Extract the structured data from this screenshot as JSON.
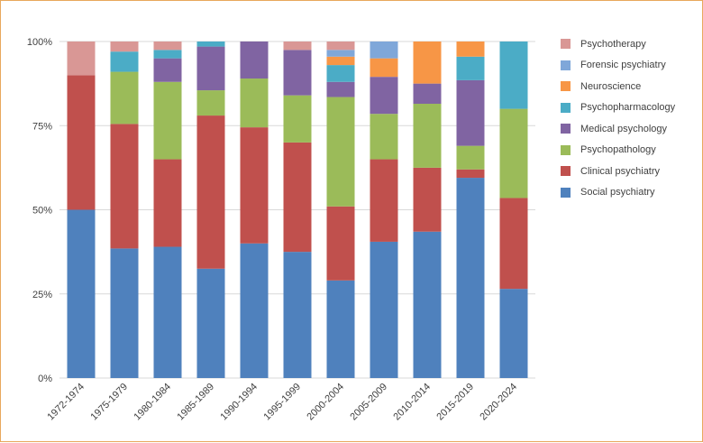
{
  "chart_data": {
    "type": "bar",
    "stacked": true,
    "normalized": true,
    "categories": [
      "1972-1974",
      "1975-1979",
      "1980-1984",
      "1985-1989",
      "1990-1994",
      "1995-1999",
      "2000-2004",
      "2005-2009",
      "2010-2014",
      "2015-2019",
      "2020-2024"
    ],
    "y_ticks": [
      "0%",
      "25%",
      "50%",
      "75%",
      "100%"
    ],
    "ylim": [
      0,
      100
    ],
    "grid": true,
    "legend_position": "right",
    "series": [
      {
        "name": "Social psychiatry",
        "color": "#4f81bd",
        "values": [
          50,
          38.5,
          39,
          32.5,
          40,
          37.5,
          29,
          40.5,
          43.5,
          59.5,
          26.5
        ]
      },
      {
        "name": "Clinical psychiatry",
        "color": "#c0504d",
        "values": [
          40,
          37,
          26,
          45.5,
          34.5,
          32.5,
          22,
          24.5,
          19,
          2.5,
          27
        ]
      },
      {
        "name": "Psychopathology",
        "color": "#9bbb59",
        "values": [
          0,
          15.5,
          23,
          7.5,
          14.5,
          14,
          32.5,
          13.5,
          19,
          7,
          26.5
        ]
      },
      {
        "name": "Medical psychology",
        "color": "#8064a2",
        "values": [
          0,
          0,
          7,
          13,
          11,
          13.5,
          4.5,
          11,
          6,
          19.5,
          0
        ]
      },
      {
        "name": "Psychopharmacology",
        "color": "#4bacc6",
        "values": [
          0,
          6,
          2.5,
          1.5,
          0,
          0,
          5,
          0,
          0,
          7,
          20
        ]
      },
      {
        "name": "Neuroscience",
        "color": "#f79646",
        "values": [
          0,
          0,
          0,
          0,
          0,
          0,
          2.5,
          5.5,
          12.5,
          4.5,
          0
        ]
      },
      {
        "name": "Forensic psychiatry",
        "color": "#7fa7d9",
        "values": [
          0,
          0,
          0,
          0,
          0,
          0,
          2,
          5,
          0,
          0,
          0
        ]
      },
      {
        "name": "Psychotherapy",
        "color": "#d99795",
        "values": [
          10,
          3,
          2.5,
          0,
          0,
          2.5,
          2.5,
          0,
          0,
          0,
          0
        ]
      }
    ],
    "legend_order": [
      "Psychotherapy",
      "Forensic psychiatry",
      "Neuroscience",
      "Psychopharmacology",
      "Medical psychology",
      "Psychopathology",
      "Clinical psychiatry",
      "Social psychiatry"
    ]
  }
}
